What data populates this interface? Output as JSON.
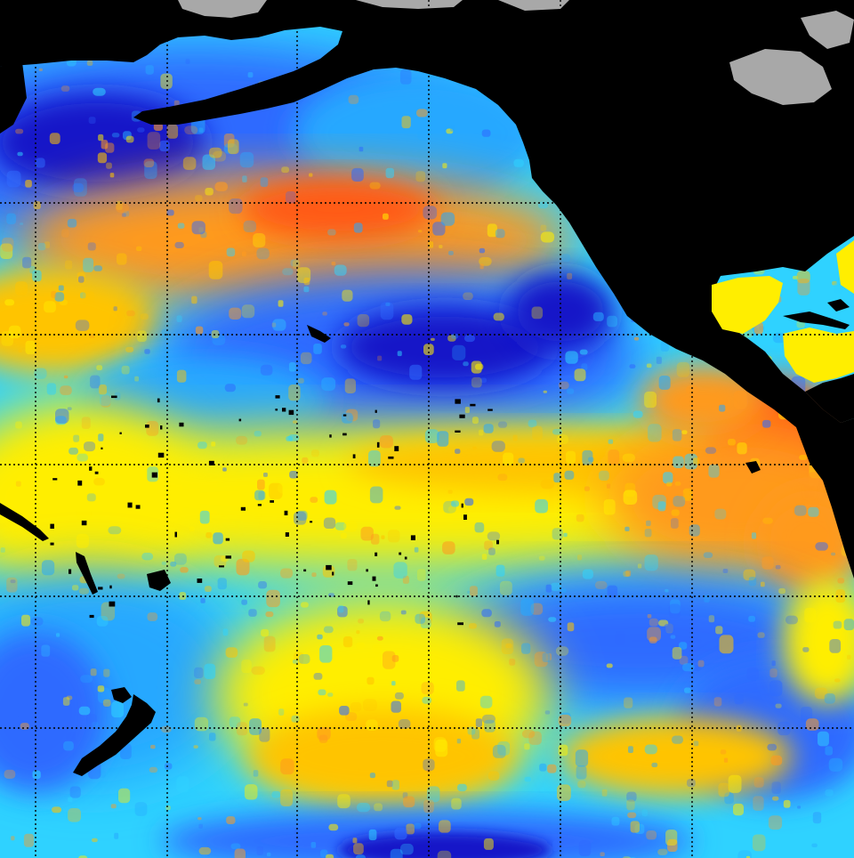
{
  "map": {
    "kind": "sea-surface-height-anomaly",
    "region": "Pacific Ocean",
    "palette": {
      "deep_blue": "#1414c8",
      "blue": "#2f6bff",
      "light_blue": "#26a8ff",
      "cyan": "#2fd2ff",
      "yellow": "#ffee00",
      "yellow_orange": "#ffc400",
      "orange": "#ff9a1f",
      "red_orange": "#ff5a14",
      "land": "#000000",
      "ice": "#a8a8a8",
      "grid": "#000000"
    },
    "grid": {
      "visible": true,
      "style": "dotted"
    },
    "features": [
      "north-pacific-warm-band",
      "equatorial-warm-tongue",
      "south-american-coast-warm-pool",
      "central-pacific-cool-lobe",
      "southern-cool-pool",
      "new-zealand",
      "hawaii",
      "alaska-ice",
      "hudson-bay-ice"
    ]
  }
}
